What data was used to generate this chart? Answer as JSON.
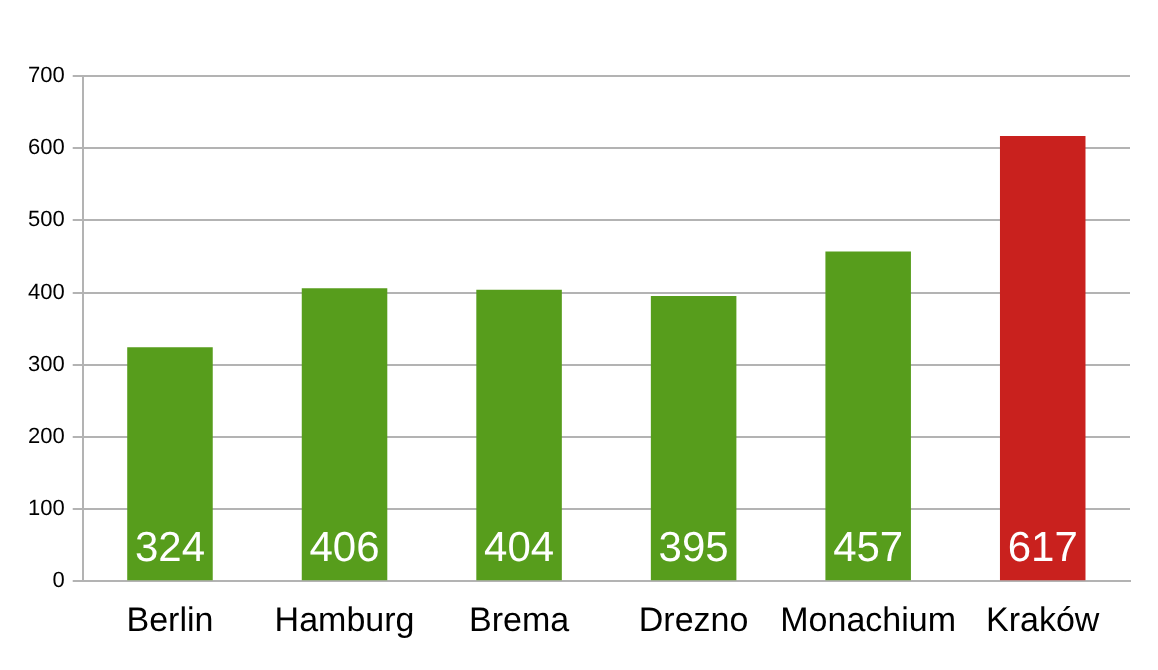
{
  "chart_data": {
    "type": "bar",
    "categories": [
      "Berlin",
      "Hamburg",
      "Brema",
      "Drezno",
      "Monachium",
      "Kraków"
    ],
    "values": [
      324,
      406,
      404,
      395,
      457,
      617
    ],
    "colors": [
      "#579d1c",
      "#579d1c",
      "#579d1c",
      "#579d1c",
      "#579d1c",
      "#c9211e"
    ],
    "ylim": [
      0,
      700
    ],
    "yticks": [
      0,
      100,
      200,
      300,
      400,
      500,
      600,
      700
    ],
    "grid": "y",
    "data_labels": true
  }
}
